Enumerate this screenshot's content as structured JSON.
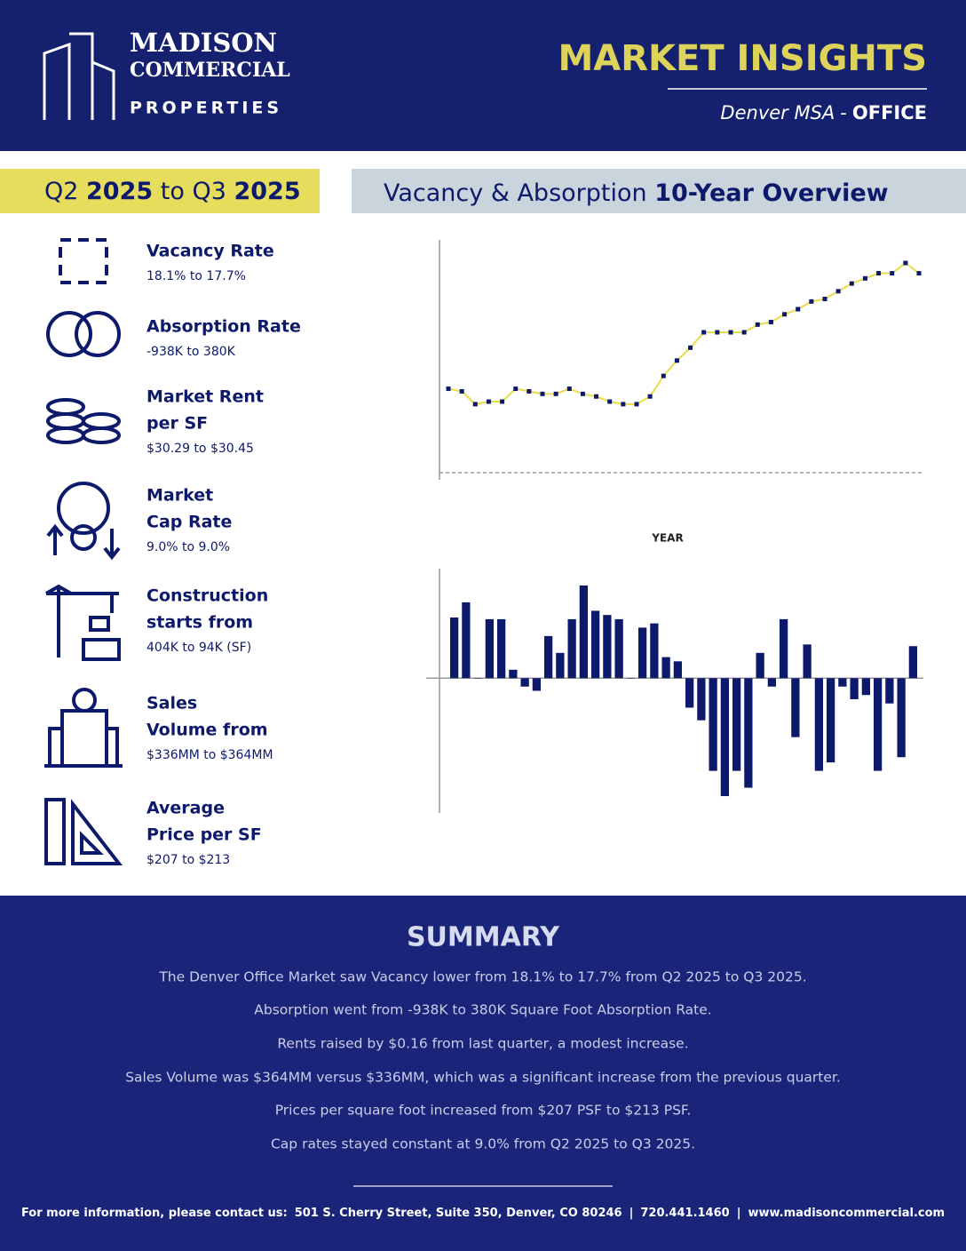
{
  "header": {
    "brand": [
      "MADISON",
      "COMMERCIAL",
      "PROPERTIES"
    ],
    "title": "MARKET INSIGHTS",
    "market": "Denver MSA",
    "separator": "-",
    "sector": "OFFICE"
  },
  "period": [
    "Q2 ",
    "2025",
    " to Q3 ",
    "2025"
  ],
  "overview_title": [
    "Vacancy & Absorption ",
    "10-Year Overview"
  ],
  "metrics": [
    {
      "label": [
        "Vacancy Rate"
      ],
      "value": "18.1% to 17.7%"
    },
    {
      "label": [
        "Absorption Rate"
      ],
      "value": "-938K to 380K"
    },
    {
      "label": [
        "Market Rent",
        "per SF"
      ],
      "value": "$30.29 to $30.45"
    },
    {
      "label": [
        "Market",
        "Cap Rate"
      ],
      "value": "9.0% to 9.0%"
    },
    {
      "label": [
        "Construction",
        "starts from"
      ],
      "value": "404K to 94K (SF)"
    },
    {
      "label": [
        "Sales",
        "Volume from"
      ],
      "value": "$336MM to $364MM"
    },
    {
      "label": [
        "Average",
        "Price per SF"
      ],
      "value": "$207 to $213"
    }
  ],
  "chart_data": [
    {
      "type": "line",
      "x_label": "YEAR",
      "color": "#e8dc4a",
      "marker_color": "#0d1a6b",
      "ylim": [
        10,
        19
      ],
      "values": [
        13.2,
        13.1,
        12.6,
        12.7,
        12.7,
        13.2,
        13.1,
        13.0,
        13.0,
        13.2,
        13.0,
        12.9,
        12.7,
        12.6,
        12.6,
        12.9,
        13.7,
        14.3,
        14.8,
        15.4,
        15.4,
        15.4,
        15.4,
        15.7,
        15.8,
        16.1,
        16.3,
        16.6,
        16.7,
        17.0,
        17.3,
        17.5,
        17.7,
        17.7,
        18.1,
        17.7
      ]
    },
    {
      "type": "bar",
      "color": "#0d1a6b",
      "ylim": [
        -1600,
        1300
      ],
      "values": [
        720,
        900,
        0,
        700,
        700,
        100,
        -100,
        -150,
        500,
        300,
        700,
        1100,
        800,
        750,
        700,
        0,
        600,
        650,
        250,
        200,
        -350,
        -500,
        -1100,
        -1400,
        -1100,
        -1300,
        300,
        -100,
        700,
        -700,
        400,
        -1100,
        -1000,
        -100,
        -250,
        -200,
        -1100,
        -300,
        -938,
        380
      ]
    }
  ],
  "summary": {
    "title": "SUMMARY",
    "lines": [
      "The Denver Office Market saw Vacancy lower from 18.1% to 17.7% from Q2 2025 to Q3 2025.",
      "Absorption went from -938K to 380K Square Foot Absorption Rate.",
      "Rents raised by $0.16 from last quarter, a modest increase.",
      "Sales Volume was $364MM versus $336MM, which was a significant increase from the previous quarter.",
      "Prices per square foot increased from $207 PSF to $213 PSF.",
      "Cap rates stayed constant at 9.0% from Q2 2025 to Q3 2025."
    ]
  },
  "footer": {
    "label": "For more information, please contact us:",
    "address": "501 S. Cherry Street, Suite 350, Denver, CO 80246",
    "phone": "720.441.1460",
    "website": "www.madisoncommercial.com"
  }
}
